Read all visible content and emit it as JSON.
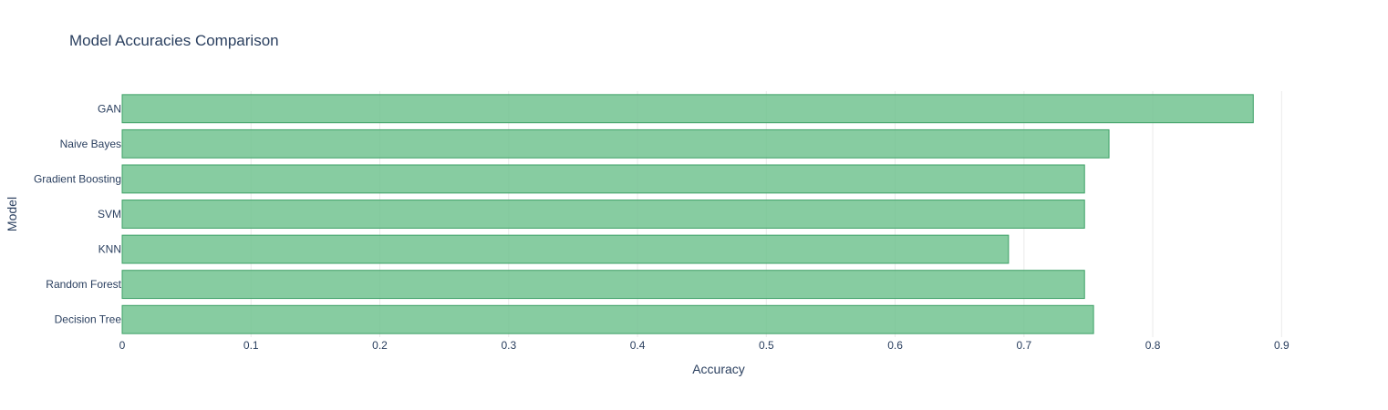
{
  "chart_data": {
    "type": "bar",
    "orientation": "horizontal",
    "title": "Model Accuracies Comparison",
    "xlabel": "Accuracy",
    "ylabel": "Model",
    "categories": [
      "Decision Tree",
      "Random Forest",
      "KNN",
      "SVM",
      "Gradient Boosting",
      "Naive Bayes",
      "GAN"
    ],
    "values": [
      0.754,
      0.747,
      0.688,
      0.747,
      0.747,
      0.766,
      0.878
    ],
    "xlim": [
      0,
      0.967
    ],
    "xticks": [
      "0",
      "0.1",
      "0.2",
      "0.3",
      "0.4",
      "0.5",
      "0.6",
      "0.7",
      "0.8",
      "0.9"
    ],
    "grid": true,
    "legend": "none",
    "colors": {
      "bar_fill": "#6cc18c",
      "bar_stroke": "#3da066",
      "text": "#2a3f5f",
      "grid": "#ebebeb"
    }
  }
}
